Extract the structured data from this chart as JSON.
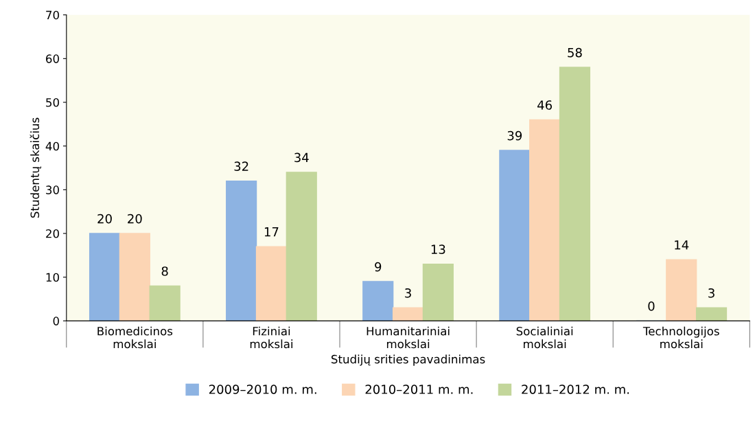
{
  "chart_data": {
    "type": "bar",
    "xlabel": "Studijų srities pavadinimas",
    "ylabel": "Studentų skaičius",
    "categories": [
      "Biomedicinos\nmokslai",
      "Fiziniai\nmokslai",
      "Humanitariniai\nmokslai",
      "Socialiniai\nmokslai",
      "Technologijos\nmokslai"
    ],
    "series": [
      {
        "name": "2009–2010 m. m.",
        "color": "#8db3e2",
        "values": [
          20,
          32,
          9,
          39,
          0
        ]
      },
      {
        "name": "2010–2011 m. m.",
        "color": "#fcd5b4",
        "values": [
          20,
          17,
          3,
          46,
          14
        ]
      },
      {
        "name": "2011–2012 m. m.",
        "color": "#c3d69b",
        "values": [
          8,
          34,
          13,
          58,
          3
        ]
      }
    ],
    "ylim": [
      0,
      70
    ],
    "yticks": [
      0,
      10,
      20,
      30,
      40,
      50,
      60,
      70
    ],
    "data_labels": true,
    "grid": false,
    "legend": "bottom"
  }
}
